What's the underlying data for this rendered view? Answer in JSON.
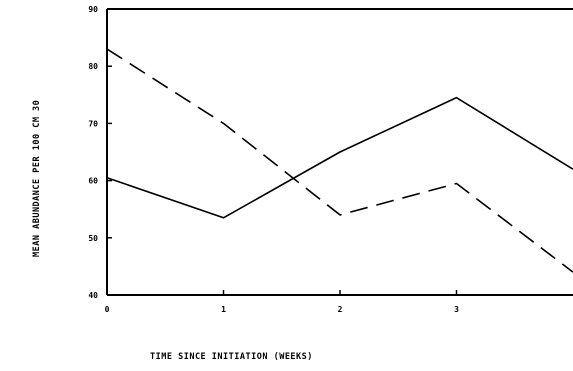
{
  "chart_data": {
    "type": "line",
    "xlabel": "TIME SINCE INITIATION (WEEKS)",
    "ylabel": "MEAN ABUNDANCE PER 100 CM 30",
    "x": [
      0,
      1,
      2,
      3,
      4
    ],
    "xticks": [
      0,
      1,
      2,
      3
    ],
    "xtick_labels": [
      "0",
      "1",
      "2",
      "3"
    ],
    "yticks": [
      40,
      50,
      60,
      70,
      80,
      90
    ],
    "ytick_labels": [
      "40",
      "50",
      "60",
      "70",
      "80",
      "90"
    ],
    "xlim": [
      0,
      4
    ],
    "ylim": [
      40,
      90
    ],
    "grid": false,
    "series": [
      {
        "style": "solid",
        "color": "#000000",
        "values": [
          60.5,
          53.5,
          65,
          74.5,
          62
        ]
      },
      {
        "style": "dashed",
        "color": "#000000",
        "values": [
          83,
          70,
          54,
          59.5,
          44
        ]
      }
    ]
  }
}
